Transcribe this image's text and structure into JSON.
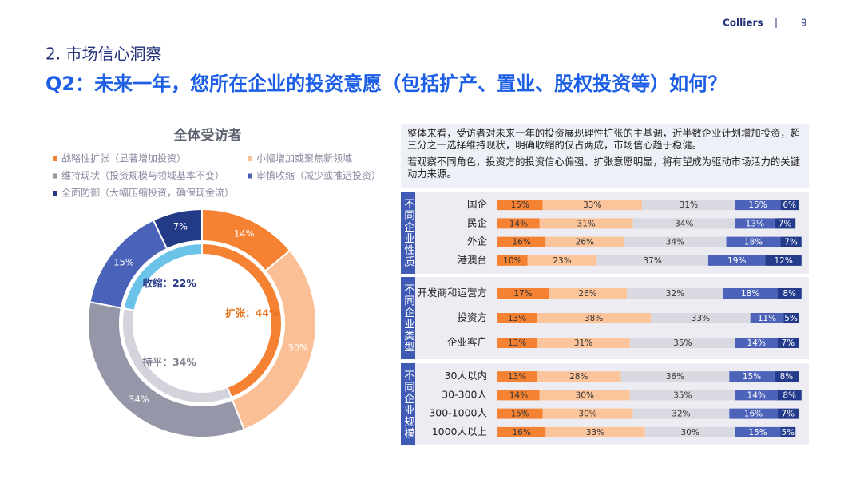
{
  "header": {
    "brand": "Colliers",
    "page": "9",
    "section": "2. 市场信心洞察",
    "title": "Q2：未来一年，您所在企业的投资意愿（包括扩产、置业、股权投资等）如何？"
  },
  "insight": {
    "paragraphs": [
      "整体来看，受访者对未来一年的投资展现理性扩张的主基调，近半数企业计划增加投资，超三分之一选择维持现状，明确收缩的仅占两成，市场信心趋于稳健。",
      "若观察不同角色，投资方的投资信心偏强、扩张意愿明显，将有望成为驱动市场活力的关键动力来源。"
    ]
  },
  "chart_data": [
    {
      "type": "donut",
      "title": "全体受访者",
      "categories": [
        "战略性扩张（显著增加投资）",
        "小幅增加或聚焦新领域",
        "维持现状（投资规模与领域基本不变）",
        "审慎收缩（减少或推迟投资）",
        "全面防御（大幅压缩投资，确保现金流）"
      ],
      "values": [
        14,
        30,
        34,
        15,
        7
      ],
      "value_labels": [
        "14%",
        "30%",
        "34%",
        "15%",
        "7%"
      ],
      "colors": [
        "#f58233",
        "#fbbf95",
        "#9596a7",
        "#4a62b8",
        "#233a86"
      ],
      "inner": {
        "values": [
          44,
          34,
          22
        ],
        "value_labels": [
          "扩张：44%",
          "持平：34%",
          "收缩：22%"
        ],
        "colors": [
          "#f58233",
          "#d3d3dc",
          "#6cc3ea"
        ],
        "label_colors": [
          "#e8731f",
          "#7f7f8f",
          "#233a86"
        ]
      }
    },
    {
      "type": "stacked-bar-horizontal",
      "xlim": [
        0,
        100
      ],
      "groups": [
        {
          "label": "不同企业性质",
          "categories": [
            "国企",
            "民企",
            "外企",
            "港澳台"
          ]
        },
        {
          "label": "不同企业类型",
          "categories": [
            "开发商和运营方",
            "投资方",
            "企业客户"
          ]
        },
        {
          "label": "不同企业规模",
          "categories": [
            "30人以内",
            "30-300人",
            "300-1000人",
            "1000人以上"
          ]
        }
      ],
      "series": [
        {
          "color": "#f58233",
          "label_color": "#333333",
          "values": [
            15,
            14,
            16,
            10,
            17,
            13,
            13,
            13,
            14,
            15,
            16
          ],
          "value_labels": [
            "15%",
            "14%",
            "16%",
            "10%",
            "17%",
            "13%",
            "13%",
            "13%",
            "14%",
            "15%",
            "16%"
          ]
        },
        {
          "color": "#fbc49a",
          "label_color": "#333333",
          "values": [
            33,
            31,
            26,
            23,
            26,
            38,
            31,
            28,
            30,
            30,
            33
          ],
          "value_labels": [
            "33%",
            "31%",
            "26%",
            "23%",
            "26%",
            "38%",
            "31%",
            "28%",
            "30%",
            "30%",
            "33%"
          ]
        },
        {
          "color": "#d9dae1",
          "label_color": "#333333",
          "values": [
            31,
            34,
            34,
            37,
            32,
            33,
            35,
            36,
            35,
            32,
            30
          ],
          "value_labels": [
            "31%",
            "34%",
            "34%",
            "37%",
            "32%",
            "33%",
            "35%",
            "36%",
            "35%",
            "32%",
            "30%"
          ]
        },
        {
          "color": "#4d63b9",
          "label_color": "#ffffff",
          "values": [
            15,
            13,
            18,
            19,
            18,
            11,
            14,
            15,
            14,
            16,
            15
          ],
          "value_labels": [
            "15%",
            "13%",
            "18%",
            "19%",
            "18%",
            "11%",
            "14%",
            "15%",
            "14%",
            "16%",
            "15%"
          ]
        },
        {
          "color": "#233b8a",
          "label_color": "#ffffff",
          "values": [
            6,
            7,
            7,
            12,
            8,
            5,
            7,
            8,
            8,
            7,
            5
          ],
          "value_labels": [
            "6%",
            "7%",
            "7%",
            "12%",
            "8%",
            "5%",
            "7%",
            "8%",
            "8%",
            "7%",
            "5%"
          ]
        }
      ]
    }
  ]
}
